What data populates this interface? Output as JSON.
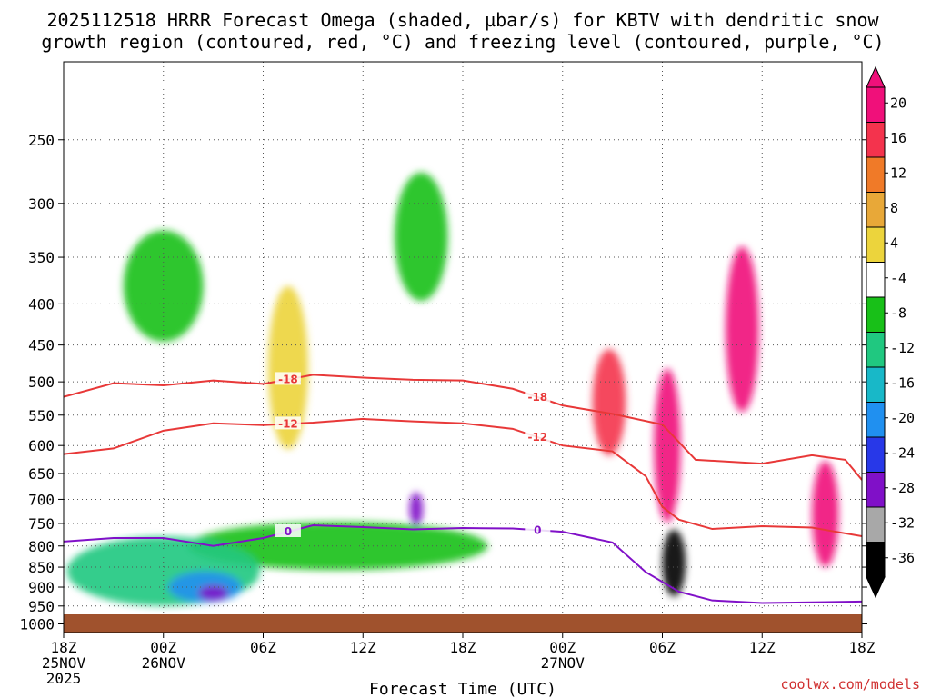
{
  "title_lines": [
    "2025112518 HRRR Forecast Omega (shaded, µbar/s) for KBTV with dendritic snow",
    "growth region (contoured, red, °C) and freezing level (contoured, purple, °C)"
  ],
  "xlabel": "Forecast Time (UTC)",
  "credit": "coolwx.com/models",
  "chart_data": {
    "type": "heatmap",
    "title": "2025112518 HRRR Forecast Omega (shaded, µbar/s) for KBTV with dendritic snow growth region (contoured, red, °C) and freezing level (contoured, purple, °C)",
    "xlabel": "Forecast Time (UTC)",
    "ylabel": "",
    "x_unit": "hours since 2025-11-25 18Z",
    "xlim": [
      0,
      48
    ],
    "x_ticks": [
      {
        "x": 0,
        "lines": [
          "18Z",
          "25NOV",
          "2025"
        ]
      },
      {
        "x": 6,
        "lines": [
          "00Z",
          "26NOV"
        ]
      },
      {
        "x": 12,
        "lines": [
          "06Z"
        ]
      },
      {
        "x": 18,
        "lines": [
          "12Z"
        ]
      },
      {
        "x": 24,
        "lines": [
          "18Z"
        ]
      },
      {
        "x": 30,
        "lines": [
          "00Z",
          "27NOV"
        ]
      },
      {
        "x": 36,
        "lines": [
          "06Z"
        ]
      },
      {
        "x": 42,
        "lines": [
          "12Z"
        ]
      },
      {
        "x": 48,
        "lines": [
          "18Z"
        ]
      }
    ],
    "y_scale": "log-pressure",
    "ylim": [
      1025,
      200
    ],
    "y_ticks": [
      250,
      300,
      350,
      400,
      450,
      500,
      550,
      600,
      650,
      700,
      750,
      800,
      850,
      900,
      950,
      1000
    ],
    "grid": true,
    "colorbar": {
      "labels": [
        "20",
        "16",
        "12",
        "8",
        "4",
        "-4",
        "-8",
        "-12",
        "-16",
        "-20",
        "-24",
        "-28",
        "-32",
        "-36"
      ],
      "colors": [
        "#f0107a",
        "#f4334d",
        "#f07a28",
        "#e8a838",
        "#ecd43c",
        "#ffffff",
        "#18c018",
        "#20c880",
        "#18b8c8",
        "#2090f0",
        "#2838e8",
        "#8010c8",
        "#a8a8a8",
        "#000000"
      ]
    },
    "omega_features": [
      {
        "name": "green",
        "color": "#18c018",
        "cx": 6.0,
        "cp": 380,
        "rx": 2.4,
        "rp": 60
      },
      {
        "name": "yellow",
        "color": "#ecd43c",
        "cx": 13.5,
        "cp": 480,
        "rx": 1.2,
        "rp": 110
      },
      {
        "name": "green",
        "color": "#18c018",
        "cx": 21.5,
        "cp": 330,
        "rx": 1.6,
        "rp": 60
      },
      {
        "name": "green",
        "color": "#18c018",
        "cx": 16.5,
        "cp": 800,
        "rx": 9.0,
        "rp": 55
      },
      {
        "name": "teal",
        "color": "#20c880",
        "cx": 6.0,
        "cp": 860,
        "rx": 5.8,
        "rp": 85
      },
      {
        "name": "blue",
        "color": "#2090f0",
        "cx": 8.5,
        "cp": 900,
        "rx": 2.2,
        "rp": 40
      },
      {
        "name": "purple",
        "color": "#8010c8",
        "cx": 9.0,
        "cp": 915,
        "rx": 0.9,
        "rp": 20
      },
      {
        "name": "purple",
        "color": "#8010c8",
        "cx": 21.2,
        "cp": 720,
        "rx": 0.4,
        "rp": 35
      },
      {
        "name": "red",
        "color": "#f4334d",
        "cx": 32.8,
        "cp": 530,
        "rx": 1.0,
        "rp": 80
      },
      {
        "name": "magenta",
        "color": "#f0107a",
        "cx": 36.3,
        "cp": 600,
        "rx": 0.8,
        "rp": 130
      },
      {
        "name": "black",
        "color": "#000000",
        "cx": 36.7,
        "cp": 840,
        "rx": 0.7,
        "rp": 80
      },
      {
        "name": "magenta",
        "color": "#f0107a",
        "cx": 40.8,
        "cp": 430,
        "rx": 1.0,
        "rp": 100
      },
      {
        "name": "magenta",
        "color": "#f0107a",
        "cx": 45.8,
        "cp": 730,
        "rx": 0.8,
        "rp": 110
      }
    ],
    "contours": [
      {
        "label": "-18",
        "color": "#e83838",
        "points": [
          [
            0,
            522
          ],
          [
            3,
            502
          ],
          [
            6,
            505
          ],
          [
            9,
            498
          ],
          [
            12,
            503
          ],
          [
            15,
            490
          ],
          [
            18,
            494
          ],
          [
            21,
            497
          ],
          [
            24,
            498
          ],
          [
            27,
            510
          ],
          [
            30,
            535
          ],
          [
            33,
            548
          ],
          [
            36,
            565
          ],
          [
            38,
            625
          ],
          [
            42,
            632
          ],
          [
            45,
            617
          ],
          [
            47,
            625
          ],
          [
            48,
            662
          ]
        ]
      },
      {
        "label": "-12",
        "color": "#e83838",
        "points": [
          [
            0,
            615
          ],
          [
            3,
            605
          ],
          [
            6,
            575
          ],
          [
            9,
            563
          ],
          [
            12,
            566
          ],
          [
            15,
            562
          ],
          [
            18,
            556
          ],
          [
            21,
            560
          ],
          [
            24,
            563
          ],
          [
            27,
            572
          ],
          [
            30,
            600
          ],
          [
            33,
            610
          ],
          [
            35,
            655
          ],
          [
            36,
            715
          ],
          [
            37,
            742
          ],
          [
            39,
            762
          ],
          [
            42,
            756
          ],
          [
            45,
            759
          ],
          [
            48,
            778
          ]
        ]
      },
      {
        "label": "0",
        "color": "#8010c8",
        "points": [
          [
            0,
            790
          ],
          [
            3,
            782
          ],
          [
            6,
            782
          ],
          [
            9,
            800
          ],
          [
            12,
            782
          ],
          [
            15,
            754
          ],
          [
            18,
            758
          ],
          [
            21,
            763
          ],
          [
            24,
            760
          ],
          [
            27,
            761
          ],
          [
            30,
            768
          ],
          [
            33,
            792
          ],
          [
            35,
            862
          ],
          [
            37,
            912
          ],
          [
            39,
            935
          ],
          [
            42,
            942
          ],
          [
            45,
            940
          ],
          [
            48,
            938
          ]
        ]
      }
    ]
  }
}
